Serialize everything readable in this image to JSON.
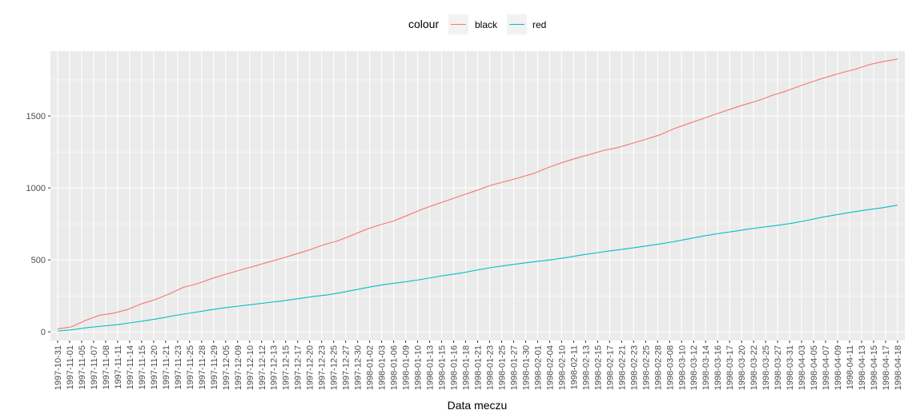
{
  "chart_data": {
    "type": "line",
    "title": "",
    "xlabel": "Data meczu",
    "ylabel": "",
    "ylim": [
      -60,
      1950
    ],
    "y_ticks": [
      0,
      500,
      1000,
      1500
    ],
    "grid": true,
    "legend": {
      "title": "colour",
      "position": "top",
      "entries": [
        "black",
        "red"
      ]
    },
    "colors": {
      "black": "#F8766D",
      "red": "#00BFC4",
      "panel": "#EBEBEB",
      "grid": "#FFFFFF"
    },
    "x_tick_labels": [
      "1997-10-31",
      "1997-11-01",
      "1997-11-05",
      "1997-11-07",
      "1997-11-08",
      "1997-11-11",
      "1997-11-14",
      "1997-11-15",
      "1997-11-20",
      "1997-11-21",
      "1997-11-23",
      "1997-11-25",
      "1997-11-28",
      "1997-11-29",
      "1997-12-05",
      "1997-12-09",
      "1997-12-10",
      "1997-12-12",
      "1997-12-13",
      "1997-12-15",
      "1997-12-17",
      "1997-12-20",
      "1997-12-23",
      "1997-12-25",
      "1997-12-27",
      "1997-12-30",
      "1998-01-02",
      "1998-01-03",
      "1998-01-06",
      "1998-01-09",
      "1998-01-10",
      "1998-01-13",
      "1998-01-15",
      "1998-01-16",
      "1998-01-18",
      "1998-01-21",
      "1998-01-23",
      "1998-01-25",
      "1998-01-27",
      "1998-01-30",
      "1998-02-01",
      "1998-02-04",
      "1998-02-10",
      "1998-02-11",
      "1998-02-13",
      "1998-02-15",
      "1998-02-17",
      "1998-02-21",
      "1998-02-23",
      "1998-02-25",
      "1998-02-28",
      "1998-03-08",
      "1998-03-10",
      "1998-03-12",
      "1998-03-14",
      "1998-03-16",
      "1998-03-17",
      "1998-03-20",
      "1998-03-22",
      "1998-03-25",
      "1998-03-27",
      "1998-03-31",
      "1998-04-03",
      "1998-04-05",
      "1998-04-07",
      "1998-04-09",
      "1998-04-11",
      "1998-04-13",
      "1998-04-15",
      "1998-04-17",
      "1998-04-18"
    ],
    "series": [
      {
        "name": "black",
        "values": [
          20,
          35,
          80,
          115,
          130,
          155,
          195,
          225,
          265,
          310,
          335,
          370,
          400,
          428,
          455,
          483,
          510,
          540,
          570,
          605,
          632,
          670,
          710,
          743,
          770,
          810,
          850,
          885,
          918,
          952,
          985,
          1020,
          1045,
          1072,
          1100,
          1140,
          1175,
          1205,
          1232,
          1260,
          1280,
          1308,
          1337,
          1368,
          1410,
          1445,
          1478,
          1512,
          1545,
          1577,
          1605,
          1641,
          1672,
          1707,
          1741,
          1772,
          1800,
          1825,
          1857,
          1878,
          1895
        ]
      },
      {
        "name": "red",
        "values": [
          5,
          15,
          30,
          40,
          50,
          65,
          80,
          97,
          117,
          133,
          150,
          165,
          178,
          190,
          203,
          215,
          230,
          245,
          257,
          275,
          295,
          315,
          332,
          345,
          360,
          378,
          395,
          410,
          430,
          448,
          463,
          477,
          490,
          502,
          517,
          535,
          550,
          565,
          578,
          593,
          608,
          625,
          645,
          665,
          682,
          697,
          713,
          727,
          740,
          755,
          775,
          797,
          815,
          832,
          848,
          862,
          880
        ]
      }
    ]
  }
}
